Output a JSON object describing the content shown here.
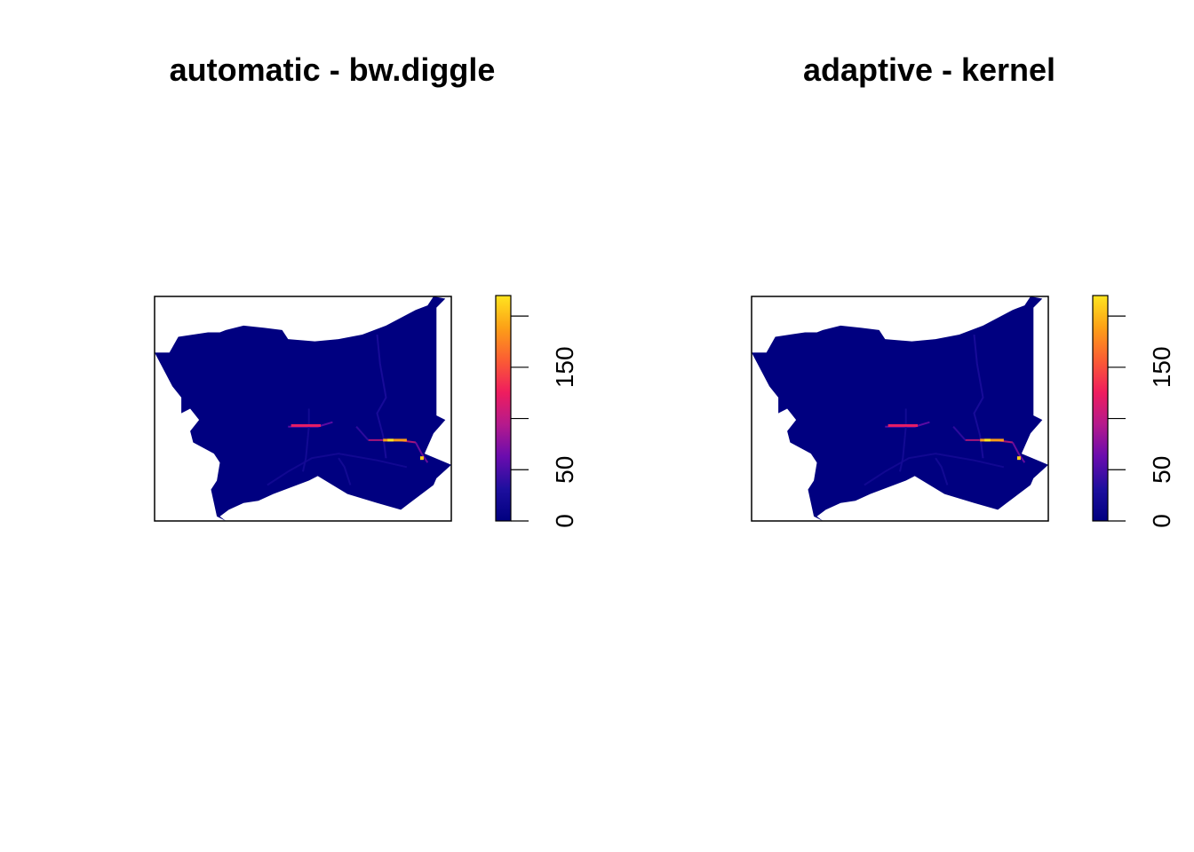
{
  "chart_data": [
    {
      "type": "heatmap",
      "title": "automatic - bw.diggle",
      "colorbar": {
        "ticks": [
          "0",
          "50",
          "150"
        ],
        "tick_values": [
          0,
          50,
          100,
          150,
          200
        ],
        "range": [
          0,
          220
        ],
        "palette": [
          "#000080",
          "#1e0f9e",
          "#6a0cae",
          "#b51a8c",
          "#ef1d5e",
          "#fb5d33",
          "#fca017",
          "#ffe51f"
        ]
      },
      "grid": false,
      "axes": false
    },
    {
      "type": "heatmap",
      "title": "adaptive - kernel",
      "colorbar": {
        "ticks": [
          "0",
          "50",
          "150"
        ],
        "tick_values": [
          0,
          50,
          100,
          150,
          200
        ],
        "range": [
          0,
          220
        ],
        "palette": [
          "#000080",
          "#1e0f9e",
          "#6a0cae",
          "#b51a8c",
          "#ef1d5e",
          "#fb5d33",
          "#fca017",
          "#ffe51f"
        ]
      },
      "grid": false,
      "axes": false
    }
  ]
}
